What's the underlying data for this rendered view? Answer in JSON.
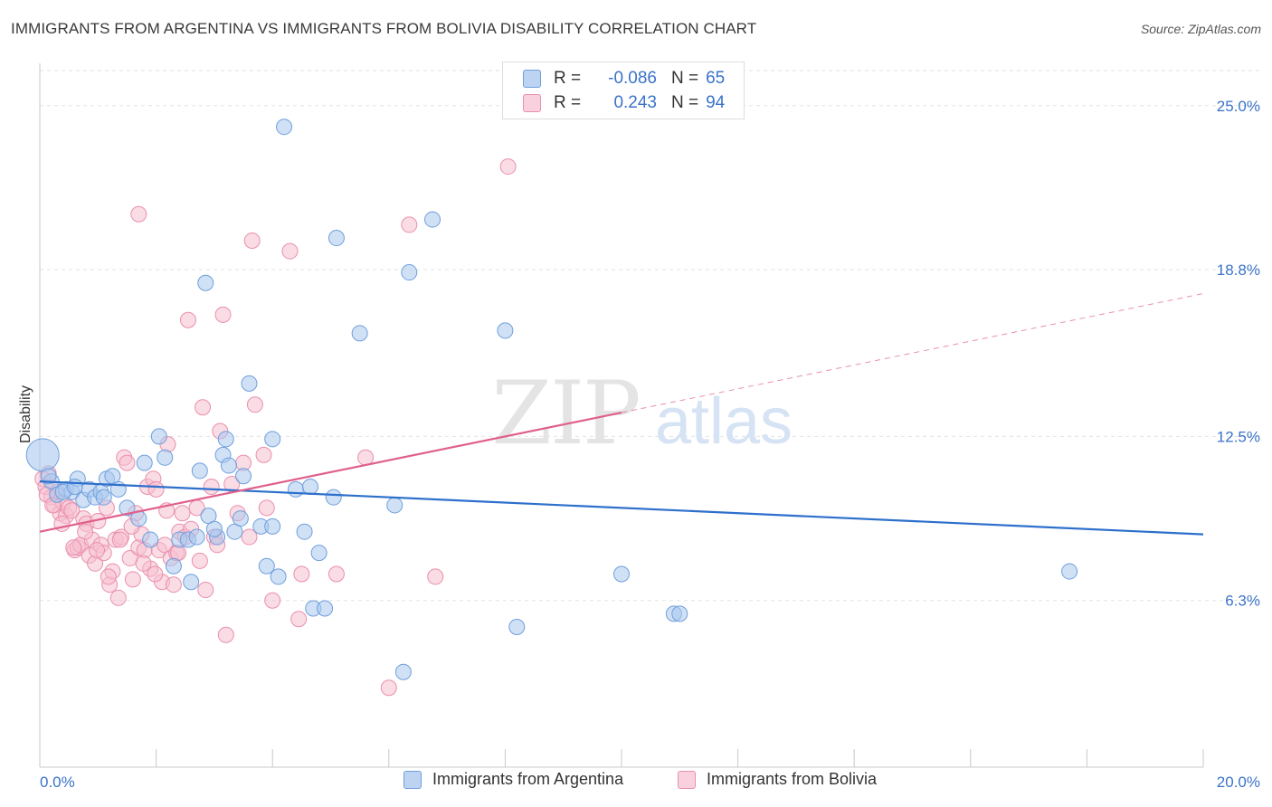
{
  "title": "IMMIGRANTS FROM ARGENTINA VS IMMIGRANTS FROM BOLIVIA DISABILITY CORRELATION CHART",
  "source": "Source: ZipAtlas.com",
  "watermark": {
    "zip": "ZIP",
    "atlas": "atlas"
  },
  "legend": {
    "rows": [
      {
        "r_label": "R =",
        "r_value": "-0.086",
        "n_label": "N =",
        "n_value": "65",
        "color": "#5b8fd6"
      },
      {
        "r_label": "R =",
        "r_value": "0.243",
        "n_label": "N =",
        "n_value": "94",
        "color": "#e87fa3"
      }
    ]
  },
  "colors": {
    "argentina_fill": "#a9c8ee",
    "argentina_stroke": "#6f9fdc",
    "argentina_line": "#2d6fcc",
    "bolivia_fill": "#f6bfd0",
    "bolivia_stroke": "#ea8fad",
    "bolivia_line": "#e0608b",
    "axis_label": "#3a73c9",
    "grid": "#e2e2e2"
  },
  "chart_data": {
    "type": "scatter",
    "title": "IMMIGRANTS FROM ARGENTINA VS IMMIGRANTS FROM BOLIVIA DISABILITY CORRELATION CHART",
    "xlabel": "",
    "ylabel": "Disability",
    "xlim": [
      0,
      20
    ],
    "ylim": [
      0,
      26.6
    ],
    "x_tick_labels": [
      "0.0%",
      "20.0%"
    ],
    "y_ticks": [
      6.3,
      12.5,
      18.8,
      25.0
    ],
    "y_tick_labels": [
      "6.3%",
      "12.5%",
      "18.8%",
      "25.0%"
    ],
    "grid": true,
    "series": [
      {
        "name": "Immigrants from Argentina",
        "trend": {
          "x": [
            0,
            20
          ],
          "y": [
            10.8,
            8.8
          ],
          "style": "solid"
        },
        "points": [
          [
            0.05,
            11.8
          ],
          [
            0.2,
            10.8
          ],
          [
            0.3,
            10.3
          ],
          [
            0.45,
            10.5
          ],
          [
            0.55,
            10.4
          ],
          [
            0.65,
            10.9
          ],
          [
            0.75,
            10.1
          ],
          [
            0.85,
            10.5
          ],
          [
            0.95,
            10.2
          ],
          [
            1.05,
            10.4
          ],
          [
            1.15,
            10.9
          ],
          [
            1.25,
            11.0
          ],
          [
            1.35,
            10.5
          ],
          [
            1.5,
            9.8
          ],
          [
            1.7,
            9.4
          ],
          [
            1.8,
            11.5
          ],
          [
            1.9,
            8.6
          ],
          [
            2.05,
            12.5
          ],
          [
            2.15,
            11.7
          ],
          [
            2.3,
            7.6
          ],
          [
            2.4,
            8.6
          ],
          [
            2.55,
            8.6
          ],
          [
            2.6,
            7.0
          ],
          [
            2.75,
            11.2
          ],
          [
            2.9,
            9.5
          ],
          [
            2.85,
            18.3
          ],
          [
            3.05,
            8.7
          ],
          [
            3.15,
            11.8
          ],
          [
            3.2,
            12.4
          ],
          [
            3.25,
            11.4
          ],
          [
            3.35,
            8.9
          ],
          [
            3.45,
            9.4
          ],
          [
            3.5,
            11.0
          ],
          [
            3.6,
            14.5
          ],
          [
            3.8,
            9.1
          ],
          [
            3.9,
            7.6
          ],
          [
            4.0,
            9.1
          ],
          [
            4.0,
            12.4
          ],
          [
            4.1,
            7.2
          ],
          [
            4.2,
            24.2
          ],
          [
            4.4,
            10.5
          ],
          [
            4.55,
            8.9
          ],
          [
            4.65,
            10.6
          ],
          [
            4.7,
            6.0
          ],
          [
            4.8,
            8.1
          ],
          [
            4.9,
            6.0
          ],
          [
            5.05,
            10.2
          ],
          [
            5.1,
            20.0
          ],
          [
            5.5,
            16.4
          ],
          [
            6.1,
            9.9
          ],
          [
            6.25,
            3.6
          ],
          [
            6.35,
            18.7
          ],
          [
            6.75,
            20.7
          ],
          [
            8.0,
            16.5
          ],
          [
            8.2,
            5.3
          ],
          [
            10.0,
            7.3
          ],
          [
            10.9,
            5.8
          ],
          [
            11.0,
            5.8
          ],
          [
            17.7,
            7.4
          ],
          [
            0.15,
            11.0
          ],
          [
            0.4,
            10.4
          ],
          [
            0.6,
            10.6
          ],
          [
            1.1,
            10.2
          ],
          [
            2.7,
            8.7
          ],
          [
            3.0,
            9.0
          ]
        ]
      },
      {
        "name": "Immigrants from Bolivia",
        "trend": {
          "x": [
            0,
            10,
            20
          ],
          "y": [
            8.9,
            13.4,
            17.9
          ],
          "solid_until": 10
        },
        "points": [
          [
            0.05,
            10.9
          ],
          [
            0.1,
            10.6
          ],
          [
            0.15,
            11.1
          ],
          [
            0.2,
            10.2
          ],
          [
            0.25,
            9.9
          ],
          [
            0.3,
            10.4
          ],
          [
            0.35,
            9.6
          ],
          [
            0.4,
            10.0
          ],
          [
            0.45,
            9.5
          ],
          [
            0.5,
            9.8
          ],
          [
            0.55,
            9.7
          ],
          [
            0.6,
            8.2
          ],
          [
            0.65,
            8.3
          ],
          [
            0.7,
            8.4
          ],
          [
            0.75,
            9.4
          ],
          [
            0.8,
            9.2
          ],
          [
            0.85,
            8.0
          ],
          [
            0.9,
            8.6
          ],
          [
            0.95,
            7.7
          ],
          [
            1.0,
            9.3
          ],
          [
            1.05,
            8.4
          ],
          [
            1.1,
            8.1
          ],
          [
            1.15,
            9.8
          ],
          [
            1.2,
            6.9
          ],
          [
            1.25,
            7.4
          ],
          [
            1.3,
            8.6
          ],
          [
            1.35,
            6.4
          ],
          [
            1.4,
            8.7
          ],
          [
            1.45,
            11.7
          ],
          [
            1.5,
            11.5
          ],
          [
            1.55,
            7.9
          ],
          [
            1.6,
            7.1
          ],
          [
            1.65,
            9.6
          ],
          [
            1.7,
            8.3
          ],
          [
            1.75,
            8.8
          ],
          [
            1.8,
            8.2
          ],
          [
            1.85,
            10.6
          ],
          [
            1.9,
            7.5
          ],
          [
            1.95,
            10.9
          ],
          [
            2.0,
            10.5
          ],
          [
            2.05,
            8.2
          ],
          [
            2.1,
            7.0
          ],
          [
            2.15,
            8.4
          ],
          [
            2.2,
            12.2
          ],
          [
            2.25,
            7.9
          ],
          [
            2.3,
            6.9
          ],
          [
            2.35,
            8.1
          ],
          [
            2.4,
            8.9
          ],
          [
            2.45,
            9.6
          ],
          [
            2.5,
            8.7
          ],
          [
            2.55,
            16.9
          ],
          [
            2.6,
            9.0
          ],
          [
            2.7,
            9.8
          ],
          [
            2.75,
            7.8
          ],
          [
            2.8,
            13.6
          ],
          [
            2.85,
            6.7
          ],
          [
            2.95,
            10.6
          ],
          [
            3.0,
            8.7
          ],
          [
            3.05,
            8.4
          ],
          [
            3.1,
            12.7
          ],
          [
            3.15,
            17.1
          ],
          [
            3.2,
            5.0
          ],
          [
            3.3,
            10.7
          ],
          [
            3.4,
            9.6
          ],
          [
            3.5,
            11.5
          ],
          [
            3.6,
            8.7
          ],
          [
            3.65,
            19.9
          ],
          [
            3.7,
            13.7
          ],
          [
            3.85,
            11.8
          ],
          [
            3.9,
            9.8
          ],
          [
            4.0,
            6.3
          ],
          [
            4.3,
            19.5
          ],
          [
            4.45,
            5.6
          ],
          [
            4.5,
            7.3
          ],
          [
            5.1,
            7.3
          ],
          [
            5.6,
            11.7
          ],
          [
            6.0,
            3.0
          ],
          [
            6.35,
            20.5
          ],
          [
            6.8,
            7.2
          ],
          [
            8.05,
            22.7
          ],
          [
            1.7,
            20.9
          ],
          [
            0.12,
            10.3
          ],
          [
            0.22,
            9.9
          ],
          [
            0.38,
            9.2
          ],
          [
            0.58,
            8.3
          ],
          [
            0.78,
            8.9
          ],
          [
            0.98,
            8.2
          ],
          [
            1.18,
            7.2
          ],
          [
            1.38,
            8.6
          ],
          [
            1.58,
            9.1
          ],
          [
            1.78,
            7.7
          ],
          [
            1.98,
            7.3
          ],
          [
            2.18,
            9.7
          ],
          [
            2.38,
            8.1
          ]
        ]
      }
    ]
  },
  "bottom_legend": [
    {
      "label": "Immigrants from Argentina"
    },
    {
      "label": "Immigrants from Bolivia"
    }
  ],
  "axes": {
    "y_label": "Disability",
    "x_min_label": "0.0%",
    "x_max_label": "20.0%"
  }
}
